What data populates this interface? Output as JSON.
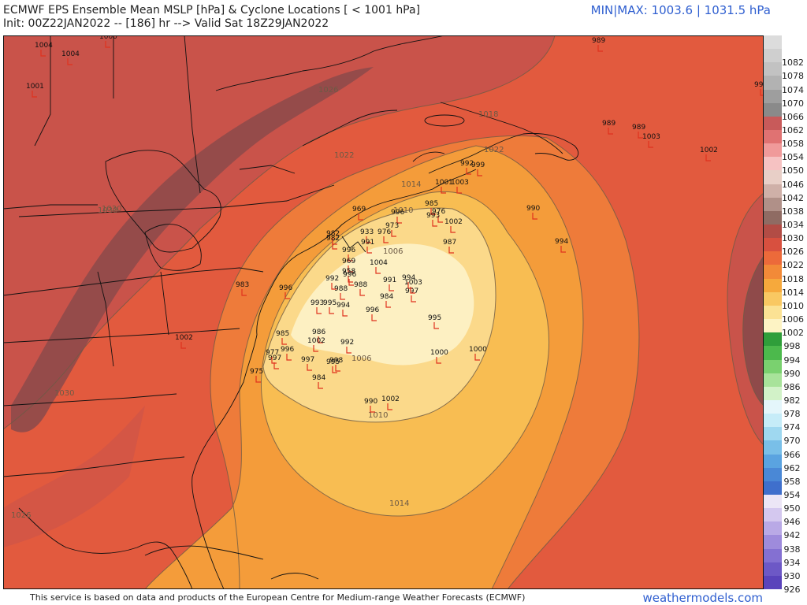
{
  "header": {
    "title": "ECMWF EPS Ensemble Mean MSLP [hPa] & Cyclone Locations [ < 1001 hPa]",
    "init": "Init: 00Z22JAN2022 -- [186] hr --> Valid Sat 18Z29JAN2022",
    "minmax": "MIN|MAX: 1003.6 | 1031.5 hPa"
  },
  "footer": {
    "credit": "This service is based on data and products of the European Centre for Medium-range Weather Forecasts (ECMWF)",
    "site": "weathermodels.com"
  },
  "colors": {
    "c1030": "#8f4a4a",
    "c1026": "#c9534a",
    "c1022": "#e25a3e",
    "c1018": "#ee7b3a",
    "c1014": "#f49c3a",
    "c1010": "#f8bd52",
    "c1006": "#fbd98a",
    "c1002": "#fdf0c2",
    "low_marker": "#e0321e",
    "contour": "#6d5a45"
  },
  "legend": [
    {
      "label": "",
      "color": "#dcdcdc"
    },
    {
      "label": "1082",
      "color": "#cfcfcf"
    },
    {
      "label": "1078",
      "color": "#c2c2c2"
    },
    {
      "label": "1074",
      "color": "#b2b2b2"
    },
    {
      "label": "1070",
      "color": "#9e9e9e"
    },
    {
      "label": "1066",
      "color": "#8a8a8a"
    },
    {
      "label": "1062",
      "color": "#c85a5a"
    },
    {
      "label": "1058",
      "color": "#e07272"
    },
    {
      "label": "1054",
      "color": "#f09a9a"
    },
    {
      "label": "1050",
      "color": "#f6c2c2"
    },
    {
      "label": "1046",
      "color": "#e8cfc7"
    },
    {
      "label": "1042",
      "color": "#cfb0a8"
    },
    {
      "label": "1038",
      "color": "#b09088"
    },
    {
      "label": "1034",
      "color": "#8f6b63"
    },
    {
      "label": "1030",
      "color": "#b24c45"
    },
    {
      "label": "1026",
      "color": "#d8503f"
    },
    {
      "label": "1022",
      "color": "#ec6a3a"
    },
    {
      "label": "1018",
      "color": "#f28a38"
    },
    {
      "label": "1014",
      "color": "#f6a93c"
    },
    {
      "label": "1010",
      "color": "#f9c862"
    },
    {
      "label": "1006",
      "color": "#fbe294"
    },
    {
      "label": "1002",
      "color": "#fdf3c4"
    },
    {
      "label": "998",
      "color": "#2f9e3a"
    },
    {
      "label": "994",
      "color": "#4cb94c"
    },
    {
      "label": "990",
      "color": "#7ad16f"
    },
    {
      "label": "986",
      "color": "#a8e39a"
    },
    {
      "label": "982",
      "color": "#d2f2c8"
    },
    {
      "label": "978",
      "color": "#e4f6fb"
    },
    {
      "label": "974",
      "color": "#c6ecf8"
    },
    {
      "label": "970",
      "color": "#9fd8f0"
    },
    {
      "label": "966",
      "color": "#79bfe8"
    },
    {
      "label": "962",
      "color": "#5aa3e0"
    },
    {
      "label": "958",
      "color": "#4a88d6"
    },
    {
      "label": "954",
      "color": "#3f6fcc"
    },
    {
      "label": "950",
      "color": "#ece6f6"
    },
    {
      "label": "946",
      "color": "#d4c8ef"
    },
    {
      "label": "942",
      "color": "#b9a9e6"
    },
    {
      "label": "938",
      "color": "#9e8bdc"
    },
    {
      "label": "934",
      "color": "#8470d2"
    },
    {
      "label": "930",
      "color": "#6d58c6"
    },
    {
      "label": "926",
      "color": "#5a43bb"
    }
  ],
  "contour_labels": [
    "1030",
    "1026",
    "1022",
    "1018",
    "1014",
    "1010",
    "1006",
    "1034"
  ],
  "lows": [
    {
      "v": "1004"
    },
    {
      "v": "1004"
    },
    {
      "v": "1001"
    },
    {
      "v": "1000"
    },
    {
      "v": "989"
    },
    {
      "v": "999"
    },
    {
      "v": "989"
    },
    {
      "v": "989"
    },
    {
      "v": "1003"
    },
    {
      "v": "1002"
    },
    {
      "v": "992"
    },
    {
      "v": "999"
    },
    {
      "v": "1003"
    },
    {
      "v": "1001"
    },
    {
      "v": "985"
    },
    {
      "v": "976"
    },
    {
      "v": "993"
    },
    {
      "v": "1002"
    },
    {
      "v": "990"
    },
    {
      "v": "994"
    },
    {
      "v": "987"
    },
    {
      "v": "969"
    },
    {
      "v": "996"
    },
    {
      "v": "973"
    },
    {
      "v": "976"
    },
    {
      "v": "933"
    },
    {
      "v": "991"
    },
    {
      "v": "982"
    },
    {
      "v": "982"
    },
    {
      "v": "996"
    },
    {
      "v": "969"
    },
    {
      "v": "958"
    },
    {
      "v": "1004"
    },
    {
      "v": "996"
    },
    {
      "v": "992"
    },
    {
      "v": "988"
    },
    {
      "v": "988"
    },
    {
      "v": "983"
    },
    {
      "v": "996"
    },
    {
      "v": "993"
    },
    {
      "v": "995"
    },
    {
      "v": "994"
    },
    {
      "v": "984"
    },
    {
      "v": "991"
    },
    {
      "v": "994"
    },
    {
      "v": "997"
    },
    {
      "v": "1003"
    },
    {
      "v": "996"
    },
    {
      "v": "995"
    },
    {
      "v": "985"
    },
    {
      "v": "986"
    },
    {
      "v": "1002"
    },
    {
      "v": "996"
    },
    {
      "v": "992"
    },
    {
      "v": "1000"
    },
    {
      "v": "997"
    },
    {
      "v": "977"
    },
    {
      "v": "997"
    },
    {
      "v": "998"
    },
    {
      "v": "995"
    },
    {
      "v": "975"
    },
    {
      "v": "984"
    },
    {
      "v": "1000"
    },
    {
      "v": "990"
    },
    {
      "v": "1002"
    },
    {
      "v": "1002"
    }
  ]
}
